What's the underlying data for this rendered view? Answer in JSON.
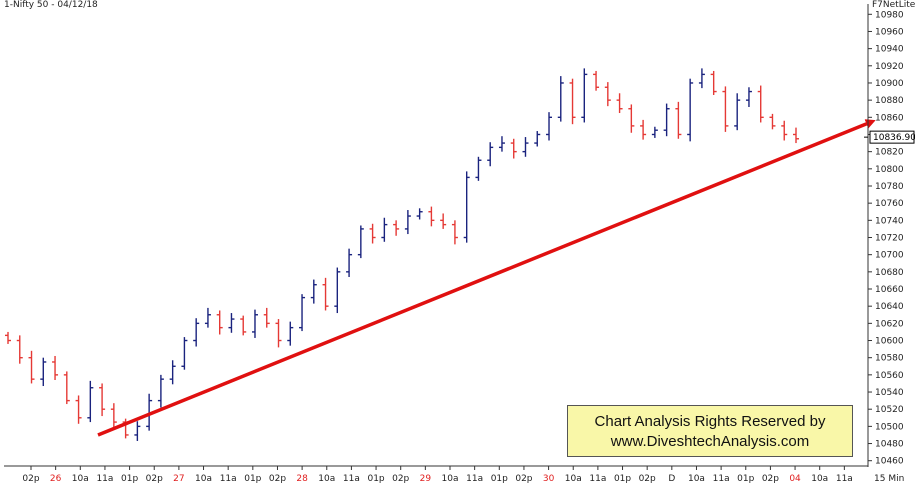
{
  "header": {
    "symbol_title": "1-Nifty 50 - 04/12/18",
    "platform": "F7NetLite"
  },
  "watermark": {
    "line1": "Chart Analysis Rights Reserved by",
    "line2": "www.DiveshtechAnalysis.com"
  },
  "timeframe": "15 Min",
  "colors": {
    "up": "#1a237e",
    "down": "#e53935",
    "trendline": "#e01010",
    "price_tag": "#000000"
  },
  "chart_data": {
    "type": "ohlc",
    "title": "1-Nifty 50 - 04/12/18",
    "ylim": [
      10455,
      10985
    ],
    "y_ticks": [
      10460,
      10480,
      10500,
      10520,
      10540,
      10560,
      10580,
      10600,
      10620,
      10640,
      10660,
      10680,
      10700,
      10720,
      10740,
      10760,
      10780,
      10800,
      10820,
      10840,
      10860,
      10880,
      10900,
      10920,
      10940,
      10960,
      10980
    ],
    "last_price_label": "10836.90",
    "x_labels": [
      {
        "t": "02p",
        "red": false
      },
      {
        "t": "26",
        "red": true
      },
      {
        "t": "10a",
        "red": false
      },
      {
        "t": "11a",
        "red": false
      },
      {
        "t": "01p",
        "red": false
      },
      {
        "t": "02p",
        "red": false
      },
      {
        "t": "27",
        "red": true
      },
      {
        "t": "10a",
        "red": false
      },
      {
        "t": "11a",
        "red": false
      },
      {
        "t": "01p",
        "red": false
      },
      {
        "t": "02p",
        "red": false
      },
      {
        "t": "28",
        "red": true
      },
      {
        "t": "10a",
        "red": false
      },
      {
        "t": "11a",
        "red": false
      },
      {
        "t": "01p",
        "red": false
      },
      {
        "t": "02p",
        "red": false
      },
      {
        "t": "29",
        "red": true
      },
      {
        "t": "10a",
        "red": false
      },
      {
        "t": "11a",
        "red": false
      },
      {
        "t": "01p",
        "red": false
      },
      {
        "t": "02p",
        "red": false
      },
      {
        "t": "30",
        "red": true
      },
      {
        "t": "10a",
        "red": false
      },
      {
        "t": "11a",
        "red": false
      },
      {
        "t": "01p",
        "red": false
      },
      {
        "t": "02p",
        "red": false
      },
      {
        "t": "D",
        "red": false
      },
      {
        "t": "10a",
        "red": false
      },
      {
        "t": "11a",
        "red": false
      },
      {
        "t": "01p",
        "red": false
      },
      {
        "t": "02p",
        "red": false
      },
      {
        "t": "04",
        "red": true
      },
      {
        "t": "10a",
        "red": false
      },
      {
        "t": "11a",
        "red": false
      }
    ],
    "closes": [
      10600,
      10580,
      10555,
      10575,
      10560,
      10530,
      10510,
      10545,
      10520,
      10505,
      10490,
      10500,
      10530,
      10555,
      10570,
      10600,
      10620,
      10630,
      10615,
      10625,
      10610,
      10630,
      10620,
      10600,
      10615,
      10650,
      10665,
      10640,
      10680,
      10700,
      10730,
      10720,
      10735,
      10730,
      10745,
      10750,
      10740,
      10735,
      10720,
      10790,
      10810,
      10825,
      10830,
      10820,
      10830,
      10840,
      10860,
      10900,
      10860,
      10910,
      10895,
      10880,
      10870,
      10850,
      10840,
      10845,
      10870,
      10840,
      10900,
      10910,
      10890,
      10850,
      10880,
      10890,
      10860,
      10850,
      10840,
      10835
    ],
    "trendline": {
      "from_price": 10490,
      "to_price": 10855,
      "label": ""
    }
  }
}
